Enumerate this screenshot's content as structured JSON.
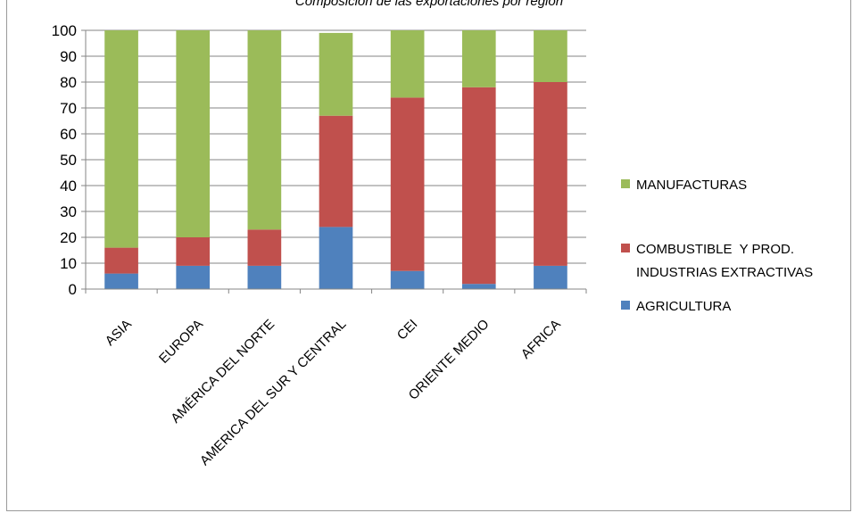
{
  "title": "Composición de las exportaciones por región",
  "chart_data": {
    "type": "bar",
    "stacked": true,
    "categories": [
      "ASIA",
      "EUROPA",
      "AMÉRICA DEL NORTE",
      "AMERICA DEL  SUR Y CENTRAL",
      "CEI",
      "ORIENTE MEDIO",
      "AFRICA"
    ],
    "series": [
      {
        "name": "AGRICULTURA",
        "color": "#4f81bd",
        "values": [
          6,
          9,
          9,
          24,
          7,
          2,
          9
        ]
      },
      {
        "name": "COMBUSTIBLE  Y PROD. INDUSTRIAS EXTRACTIVAS",
        "color": "#c0504d",
        "values": [
          10,
          11,
          14,
          43,
          67,
          76,
          71
        ]
      },
      {
        "name": "MANUFACTURAS",
        "color": "#9bbb59",
        "values": [
          84,
          80,
          77,
          32,
          26,
          22,
          20
        ]
      }
    ],
    "legend_order": [
      "MANUFACTURAS",
      "COMBUSTIBLE  Y PROD. INDUSTRIAS EXTRACTIVAS",
      "AGRICULTURA"
    ],
    "legend_position": "right",
    "y_ticks": [
      "0",
      "10",
      "20",
      "30",
      "40",
      "50",
      "60",
      "70",
      "80",
      "90",
      "100"
    ],
    "ylim": [
      0,
      100
    ],
    "grid": true,
    "xlabel": "",
    "ylabel": ""
  }
}
